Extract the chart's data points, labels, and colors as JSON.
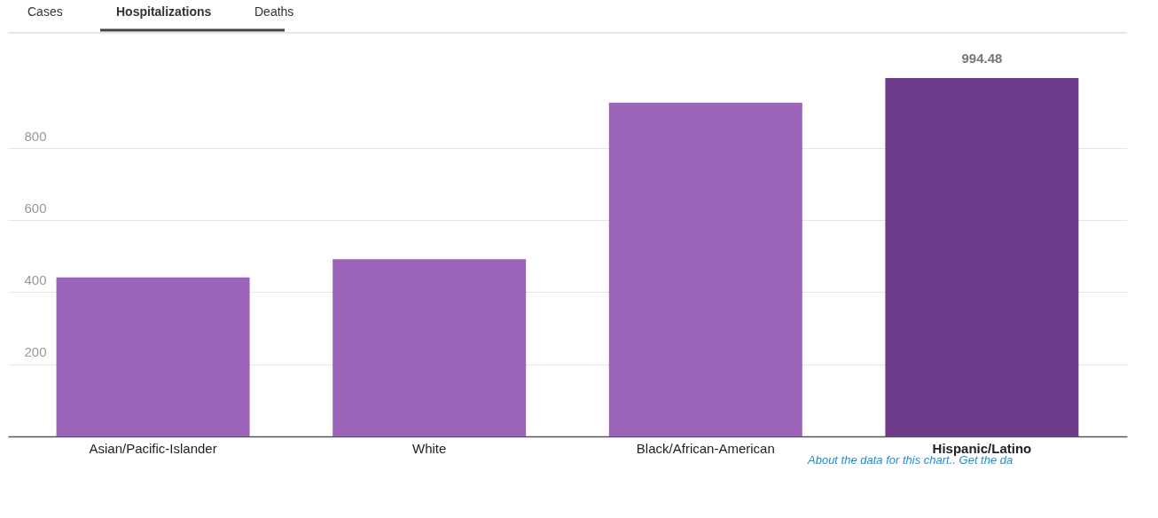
{
  "chart_data": {
    "type": "bar",
    "categories": [
      "Asian/Pacific-Islander",
      "White",
      "Black/African-American",
      "Hispanic/Latino"
    ],
    "values": [
      441,
      492,
      926,
      994.48
    ],
    "colors": [
      "#9b64b8",
      "#9b64b8",
      "#9b64b8",
      "#6e3a8a"
    ],
    "value_labels": [
      null,
      null,
      null,
      "994.48"
    ],
    "ylim": [
      0,
      1120
    ],
    "yticks": [
      200,
      400,
      600,
      800
    ],
    "grid": "y",
    "annotations": [
      "Cases",
      "Hospitalizations",
      "Deaths",
      "About the data for this chart.. Get the da"
    ]
  }
}
